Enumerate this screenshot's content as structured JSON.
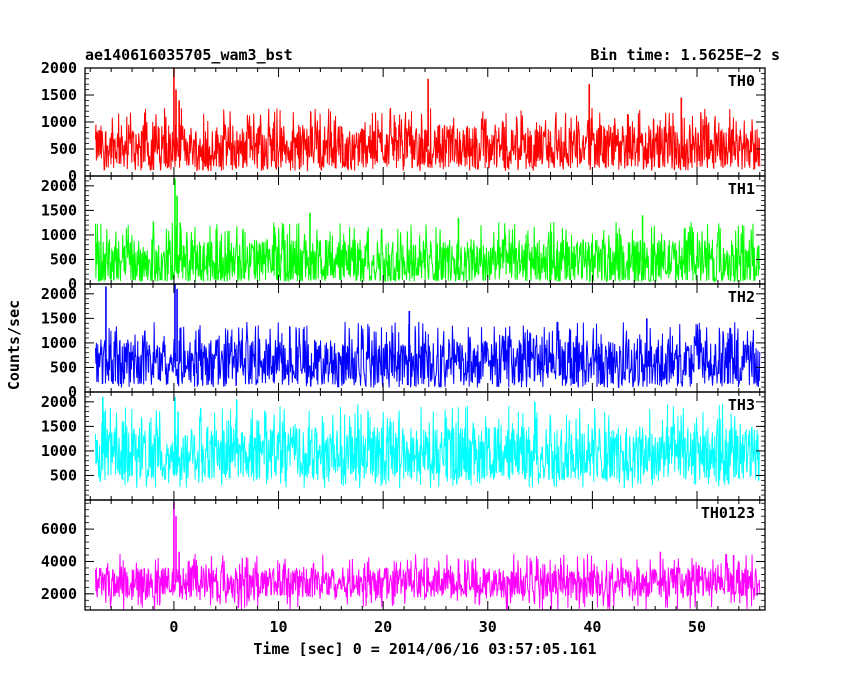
{
  "header": {
    "title": "ae140616035705_wam3_bst",
    "bin_time": "Bin time: 1.5625E−2 s"
  },
  "colors": {
    "TH0": "#ff0000",
    "TH1": "#00ff00",
    "TH2": "#0000ff",
    "TH3": "#00ffff",
    "TH0123": "#ff00ff",
    "frame": "#000000"
  },
  "chart_data": {
    "type": "line",
    "title": "ae140616035705_wam3_bst",
    "xlabel": "Time [sec] 0 = 2014/06/16 03:57:05.161",
    "ylabel": "Counts/sec",
    "xlim": [
      -8.5,
      56.5
    ],
    "x_ticks": [
      0,
      10,
      20,
      30,
      40,
      50
    ],
    "data_range_x": [
      -7.5,
      56
    ],
    "bin_time_s": 0.015625,
    "panels": [
      {
        "name": "TH0",
        "color": "#ff0000",
        "ylim": [
          0,
          2000
        ],
        "y_ticks": [
          0,
          500,
          1000,
          1500,
          2000
        ],
        "baseline_mean": 550,
        "typical_upper": 1100,
        "typical_lower": 150,
        "burst": [
          {
            "t": 0.0,
            "value": 2000
          },
          {
            "t": 0.2,
            "value": 1600
          },
          {
            "t": 0.5,
            "value": 1400
          }
        ],
        "spikes": [
          {
            "t": 24.3,
            "value": 1800
          },
          {
            "t": 39.7,
            "value": 1700
          },
          {
            "t": 48.5,
            "value": 1450
          }
        ]
      },
      {
        "name": "TH1",
        "color": "#00ff00",
        "ylim": [
          0,
          2200
        ],
        "y_ticks": [
          0,
          500,
          1000,
          1500,
          2000
        ],
        "baseline_mean": 480,
        "typical_upper": 1100,
        "typical_lower": 80,
        "burst": [
          {
            "t": 0.1,
            "value": 2150
          },
          {
            "t": 0.3,
            "value": 1800
          },
          {
            "t": 0.6,
            "value": 1250
          }
        ],
        "spikes": [
          {
            "t": 13.0,
            "value": 1450
          },
          {
            "t": 27.2,
            "value": 1350
          },
          {
            "t": 44.8,
            "value": 1400
          }
        ]
      },
      {
        "name": "TH2",
        "color": "#0000ff",
        "ylim": [
          0,
          2200
        ],
        "y_ticks": [
          0,
          500,
          1000,
          1500,
          2000
        ],
        "baseline_mean": 620,
        "typical_upper": 1250,
        "typical_lower": 150,
        "burst": [
          {
            "t": 0.1,
            "value": 2200
          },
          {
            "t": 0.3,
            "value": 2100
          },
          {
            "t": 0.6,
            "value": 1300
          }
        ],
        "spikes": [
          {
            "t": -6.5,
            "value": 2150
          },
          {
            "t": 22.5,
            "value": 1650
          },
          {
            "t": 45.2,
            "value": 1500
          }
        ]
      },
      {
        "name": "TH3",
        "color": "#00ffff",
        "ylim": [
          0,
          2200
        ],
        "y_ticks": [
          500,
          1000,
          1500,
          2000
        ],
        "baseline_mean": 950,
        "typical_upper": 1700,
        "typical_lower": 400,
        "burst": [
          {
            "t": 0.1,
            "value": 2100
          },
          {
            "t": 0.4,
            "value": 1800
          }
        ],
        "spikes": [
          {
            "t": -6.8,
            "value": 2100
          },
          {
            "t": 6.0,
            "value": 2050
          },
          {
            "t": 34.5,
            "value": 2000
          }
        ]
      },
      {
        "name": "TH0123",
        "color": "#ff00ff",
        "ylim": [
          1000,
          7800
        ],
        "y_ticks": [
          2000,
          4000,
          6000
        ],
        "baseline_mean": 2700,
        "typical_upper": 3900,
        "typical_lower": 1700,
        "burst": [
          {
            "t": 0.0,
            "value": 7700
          },
          {
            "t": 0.2,
            "value": 6800
          },
          {
            "t": 0.5,
            "value": 4600
          }
        ],
        "spikes": [
          {
            "t": 46.5,
            "value": 4600
          },
          {
            "t": 53.5,
            "value": 4400
          }
        ]
      }
    ]
  }
}
